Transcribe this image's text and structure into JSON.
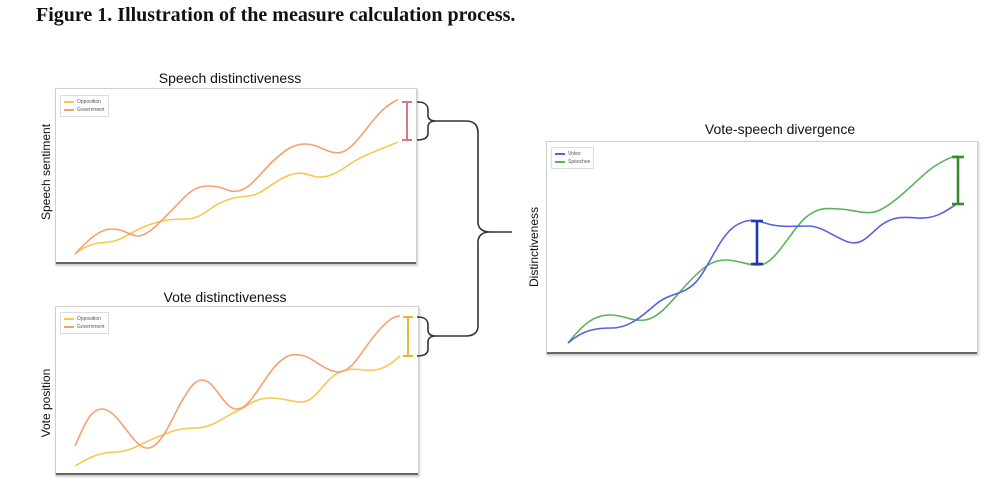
{
  "figure_title": "Figure 1. Illustration of the measure calculation process.",
  "colors": {
    "opposition": "#f9c74f",
    "government": "#f4a072",
    "votes": "#5b5fe3",
    "speeches": "#59b35a",
    "speech_bracket": "#d9787e",
    "vote_bracket": "#e8b43a",
    "votes_bracket": "#1f3aa8",
    "speeches_bracket": "#3c8a2d"
  },
  "panels": {
    "speech": {
      "title": "Speech distinctiveness",
      "ylabel": "Speech sentiment",
      "legend": [
        "Opposition",
        "Government"
      ]
    },
    "vote": {
      "title": "Vote distinctiveness",
      "ylabel": "Vote position",
      "legend": [
        "Opposition",
        "Government"
      ]
    },
    "divergence": {
      "title": "Vote-speech divergence",
      "ylabel": "Distinctiveness",
      "legend": [
        "Votes",
        "Speeches"
      ]
    }
  }
}
